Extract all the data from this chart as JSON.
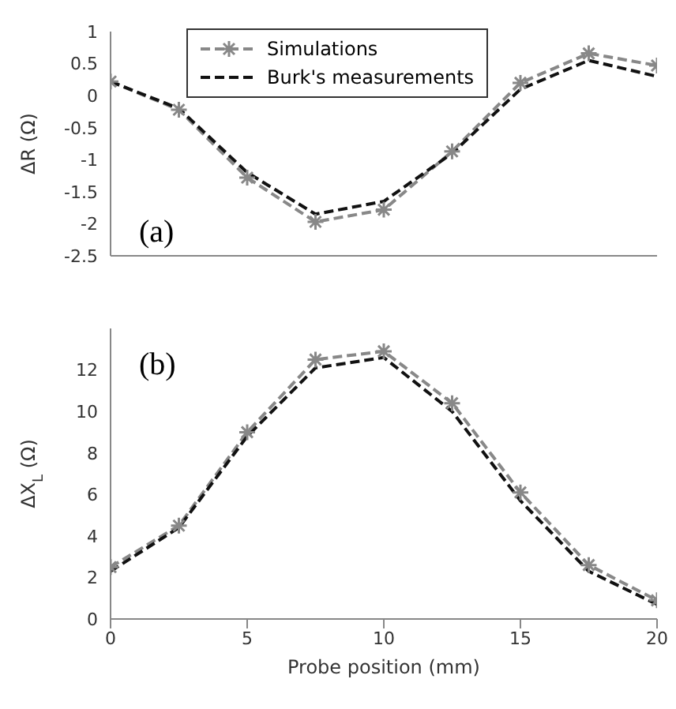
{
  "chart_data": [
    {
      "type": "line",
      "ylabel": "ΔR (Ω)",
      "x": [
        0,
        2.5,
        5,
        7.5,
        10,
        12.5,
        15,
        17.5,
        20
      ],
      "xlim": [
        0,
        20
      ],
      "xticks": [
        0,
        5,
        10,
        15,
        20
      ],
      "ylim": [
        -2.5,
        1
      ],
      "yticks": [
        -2.5,
        -2,
        -1.5,
        -1,
        -0.5,
        0,
        0.5,
        1
      ],
      "tick_labels": "y",
      "legend": "top",
      "line_style": "dashed",
      "annotations": [
        "(a)"
      ],
      "series": [
        {
          "name": "Simulations",
          "color": "#888888",
          "marker": "cross",
          "values": [
            0.22,
            -0.22,
            -1.28,
            -1.97,
            -1.78,
            -0.87,
            0.2,
            0.66,
            0.47
          ]
        },
        {
          "name": "Burk's measurements",
          "color": "#111111",
          "marker": "none",
          "values": [
            0.22,
            -0.2,
            -1.2,
            -1.85,
            -1.65,
            -0.9,
            0.1,
            0.55,
            0.3
          ]
        }
      ]
    },
    {
      "type": "line",
      "ylabel": "ΔX$_{L}$ (Ω)",
      "xlabel": "Probe position (mm)",
      "x": [
        0,
        2.5,
        5,
        7.5,
        10,
        12.5,
        15,
        17.5,
        20
      ],
      "xlim": [
        0,
        20
      ],
      "xticks": [
        0,
        5,
        10,
        15,
        20
      ],
      "ylim": [
        0,
        14
      ],
      "yticks": [
        0,
        2,
        4,
        6,
        8,
        10,
        12
      ],
      "line_style": "dashed",
      "annotations": [
        "(b)"
      ],
      "series": [
        {
          "color": "#888888",
          "marker": "cross",
          "values": [
            2.5,
            4.5,
            9.0,
            12.5,
            12.9,
            10.4,
            6.1,
            2.6,
            0.9
          ]
        },
        {
          "color": "#111111",
          "marker": "none",
          "values": [
            2.3,
            4.4,
            8.8,
            12.1,
            12.6,
            10.0,
            5.7,
            2.3,
            0.7
          ]
        }
      ]
    }
  ]
}
